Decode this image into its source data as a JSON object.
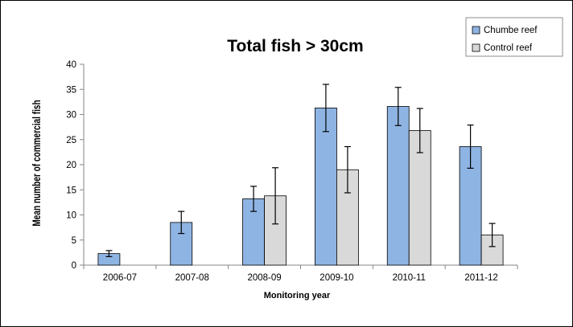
{
  "chart_data": {
    "type": "bar",
    "title": "Total fish > 30cm",
    "xlabel": "Monitoring year",
    "ylabel": "Mean number of commercial fish",
    "ylim": [
      0,
      40
    ],
    "yticks": [
      0,
      5,
      10,
      15,
      20,
      25,
      30,
      35,
      40
    ],
    "grid": false,
    "legend_position": "top-right",
    "categories": [
      "2006-07",
      "2007-08",
      "2008-09",
      "2009-10",
      "2010-11",
      "2011-12"
    ],
    "series": [
      {
        "name": "Chumbe reef",
        "color": "#8eb4e3",
        "values": [
          2.3,
          8.5,
          13.2,
          31.3,
          31.6,
          23.6
        ],
        "errors": [
          0.6,
          2.2,
          2.5,
          4.7,
          3.8,
          4.3
        ]
      },
      {
        "name": "Control reef",
        "color": "#d9d9d9",
        "values": [
          null,
          null,
          13.8,
          19.0,
          26.8,
          6.0
        ],
        "errors": [
          null,
          null,
          5.6,
          4.6,
          4.4,
          2.3
        ]
      }
    ]
  }
}
